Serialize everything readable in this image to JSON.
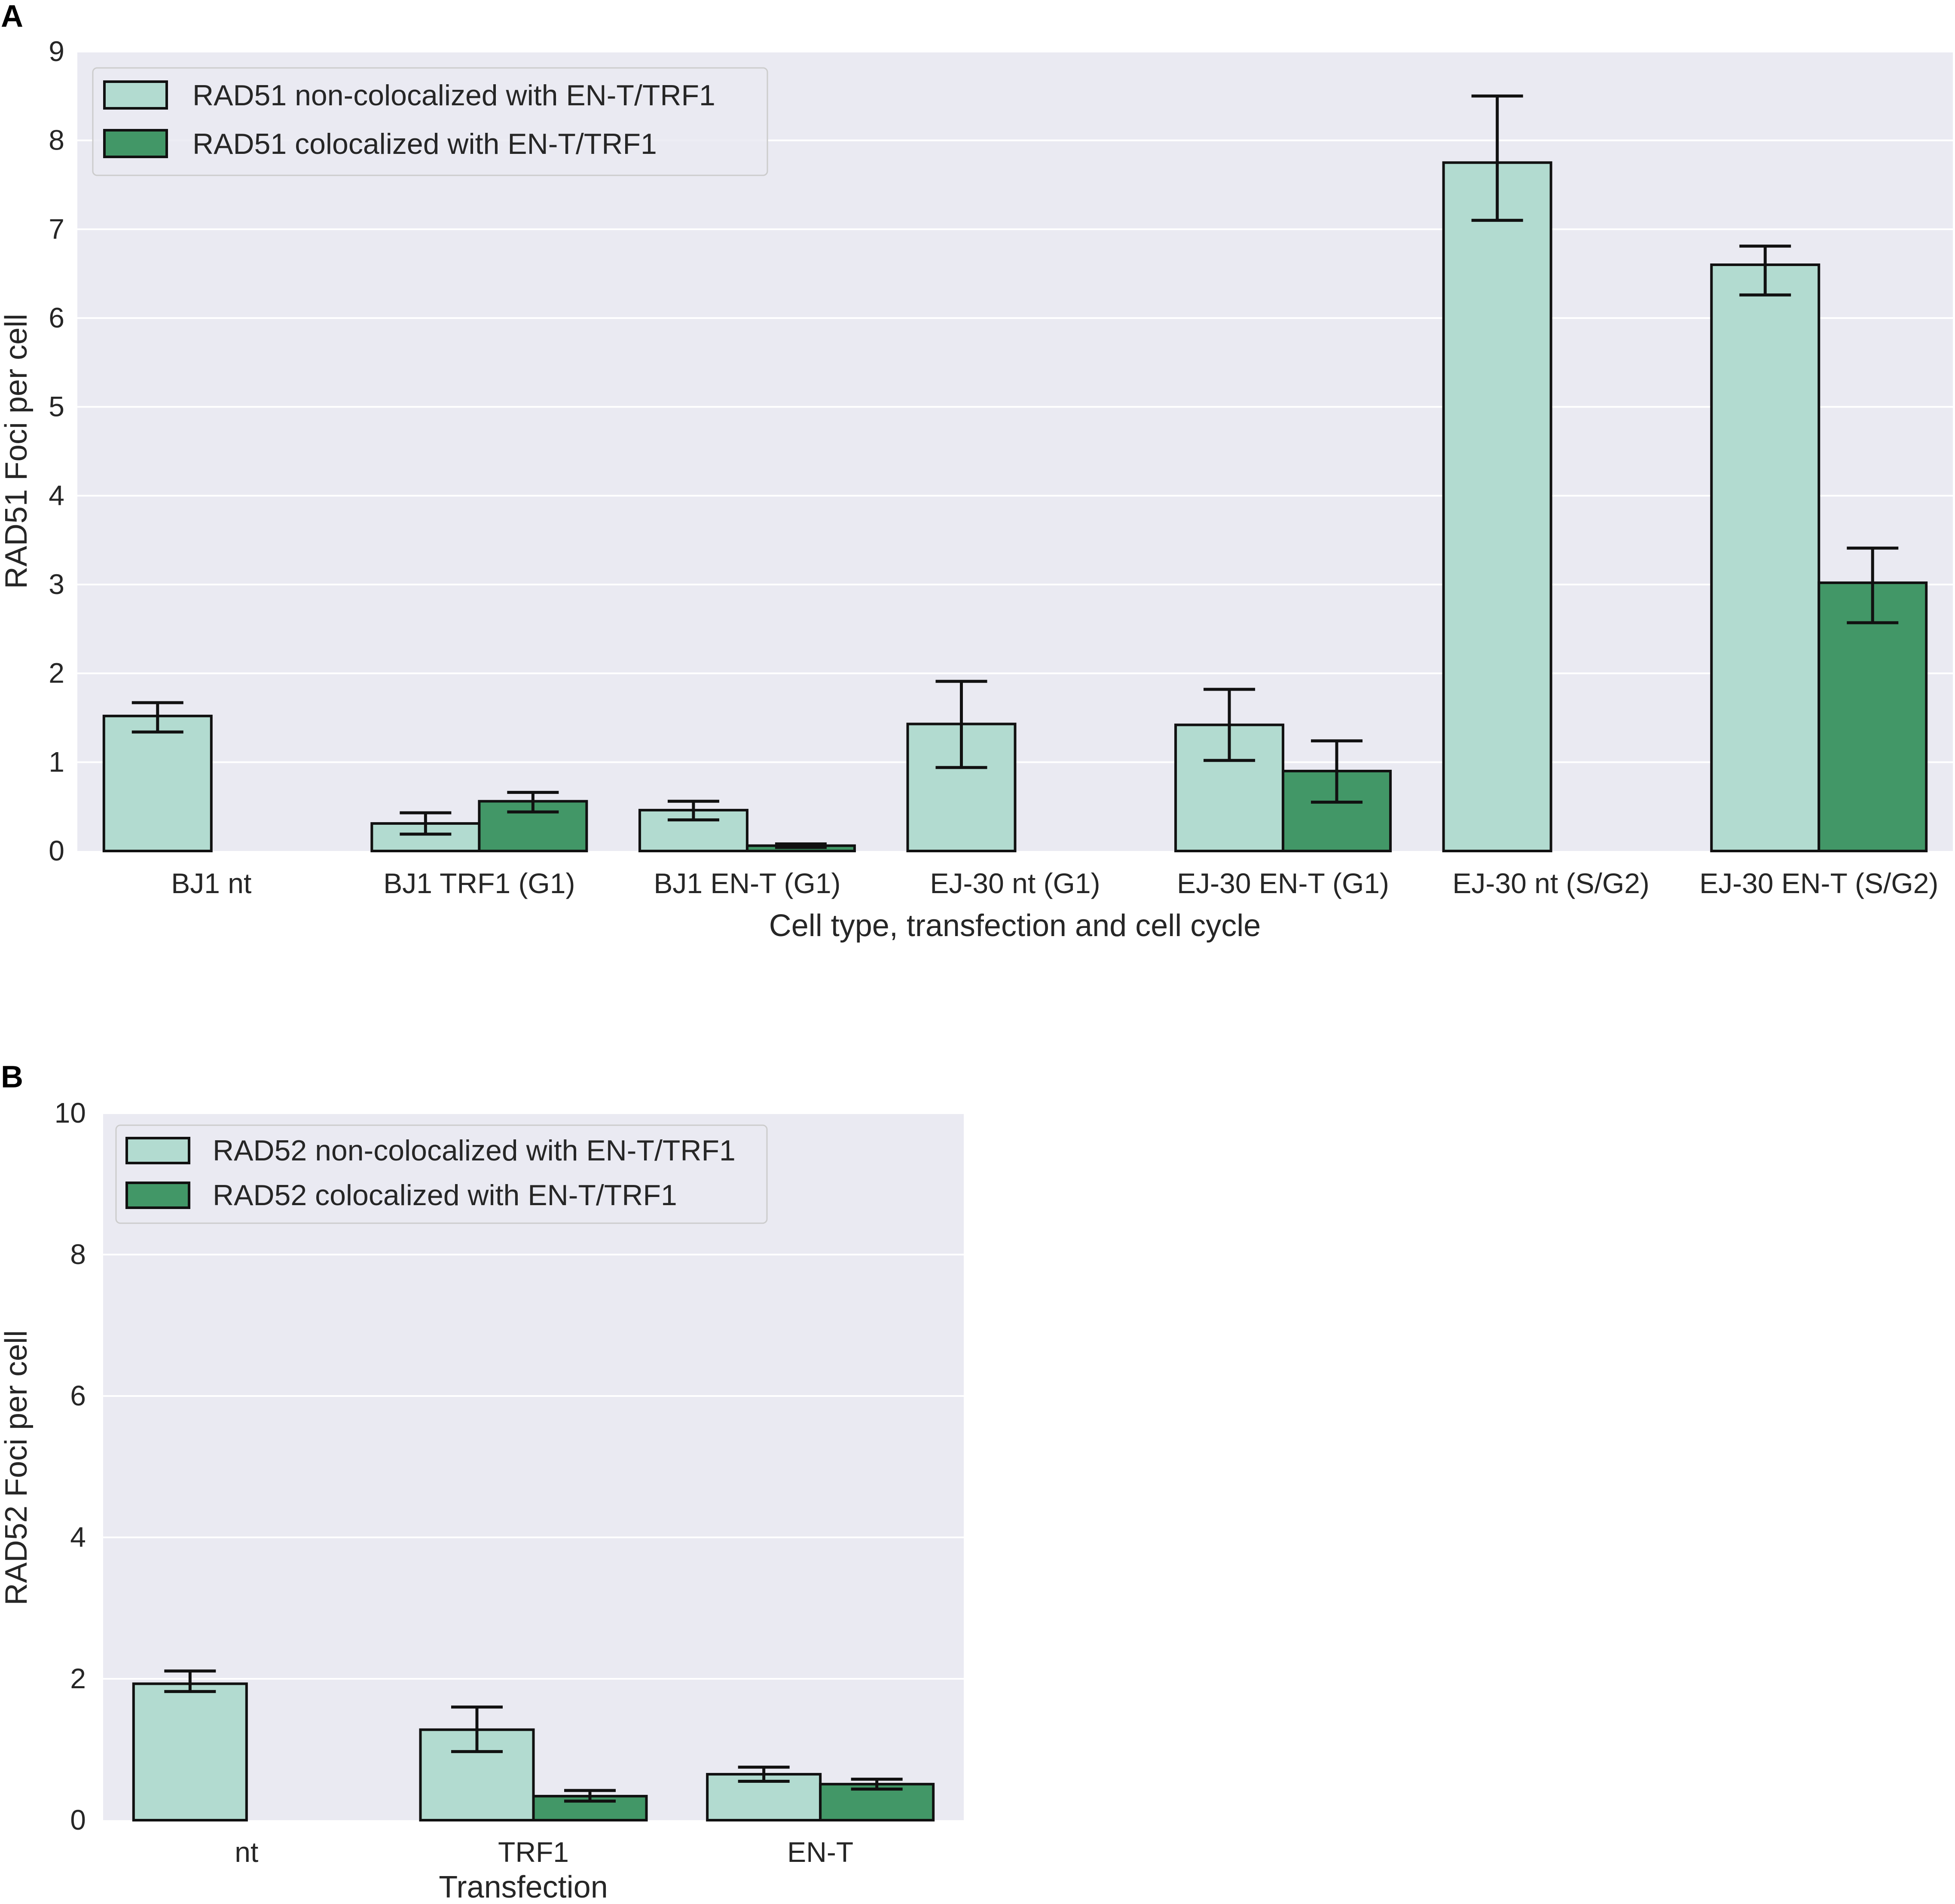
{
  "colors": {
    "plot_background": "#eaeaf2",
    "grid": "#ffffff",
    "non_colocalized": "#b2dbd0",
    "colocalized": "#429767",
    "bar_edge": "#111111",
    "error_bar": "#111111"
  },
  "chart_data": [
    {
      "type": "bar",
      "panel_label": "A",
      "title": "",
      "xlabel": "Cell type, transfection and cell cycle",
      "ylabel": "RAD51 Foci per cell",
      "ylim": [
        0,
        9
      ],
      "yticks": [
        "0",
        "1",
        "2",
        "3",
        "4",
        "5",
        "6",
        "7",
        "8",
        "9"
      ],
      "grid": true,
      "legend_position": "upper-left",
      "categories": [
        "BJ1 nt",
        "BJ1 TRF1 (G1)",
        "BJ1 EN-T (G1)",
        "EJ-30 nt (G1)",
        "EJ-30 EN-T (G1)",
        "EJ-30 nt (S/G2)",
        "EJ-30 EN-T (S/G2)"
      ],
      "series": [
        {
          "name": "RAD51 non-colocalized with EN-T/TRF1",
          "color": "#b2dbd0",
          "values": [
            1.52,
            0.31,
            0.46,
            1.43,
            1.42,
            7.75,
            6.6
          ],
          "error_low": [
            1.34,
            0.19,
            0.35,
            0.94,
            1.02,
            7.1,
            6.26
          ],
          "error_high": [
            1.67,
            0.43,
            0.56,
            1.91,
            1.82,
            8.5,
            6.81
          ]
        },
        {
          "name": "RAD51 colocalized with EN-T/TRF1",
          "color": "#429767",
          "values": [
            0,
            0.56,
            0.06,
            0,
            0.9,
            0,
            3.02
          ],
          "error_low": [
            null,
            0.44,
            0.04,
            null,
            0.55,
            null,
            2.57
          ],
          "error_high": [
            null,
            0.66,
            0.08,
            null,
            1.24,
            null,
            3.41
          ]
        }
      ]
    },
    {
      "type": "bar",
      "panel_label": "B",
      "title": "",
      "xlabel": "Transfection",
      "ylabel": "RAD52 Foci per cell",
      "ylim": [
        0,
        10
      ],
      "yticks": [
        "0",
        "2",
        "4",
        "6",
        "8",
        "10"
      ],
      "grid": true,
      "legend_position": "upper-left",
      "categories": [
        "nt",
        "TRF1",
        "EN-T"
      ],
      "series": [
        {
          "name": "RAD52 non-colocalized with EN-T/TRF1",
          "color": "#b2dbd0",
          "values": [
            1.93,
            1.28,
            0.65
          ],
          "error_low": [
            1.82,
            0.97,
            0.55
          ],
          "error_high": [
            2.11,
            1.6,
            0.75
          ]
        },
        {
          "name": "RAD52 colocalized with EN-T/TRF1",
          "color": "#429767",
          "values": [
            0,
            0.34,
            0.51
          ],
          "error_low": [
            null,
            0.27,
            0.44
          ],
          "error_high": [
            null,
            0.42,
            0.58
          ]
        }
      ]
    }
  ]
}
